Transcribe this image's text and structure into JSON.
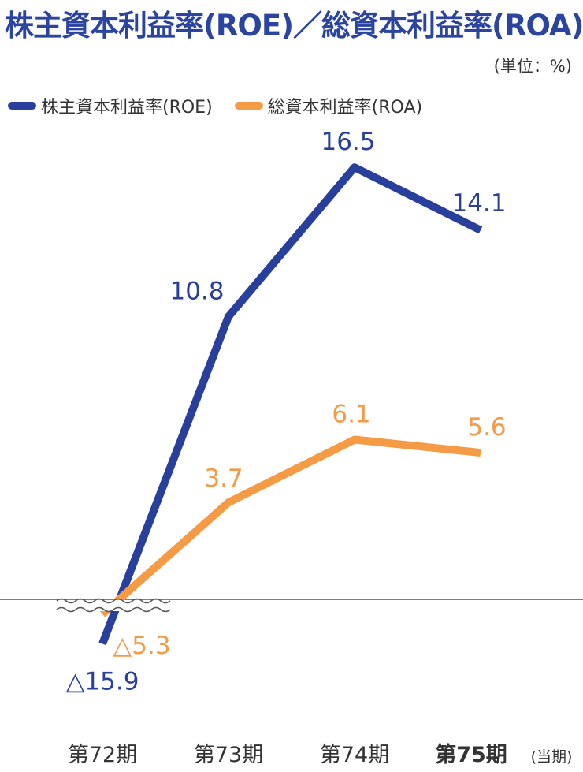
{
  "title": "株主資本利益率(ROE)／総資本利益率(ROA)",
  "unit_label": "(単位：%)",
  "colors": {
    "roe": "#283f9c",
    "roa": "#f59a45",
    "title": "#2a44a0"
  },
  "chart_data": {
    "type": "line",
    "categories": [
      "第72期",
      "第73期",
      "第74期",
      "第75期"
    ],
    "category_suffix_last": "(当期)",
    "bold_category_index": 3,
    "broken_axis": true,
    "series": [
      {
        "key": "roe",
        "name": "株主資本利益率(ROE)",
        "values": [
          -15.9,
          10.8,
          16.5,
          14.1
        ],
        "labels": [
          "△15.9",
          "10.8",
          "16.5",
          "14.1"
        ]
      },
      {
        "key": "roa",
        "name": "総資本利益率(ROA)",
        "values": [
          -5.3,
          3.7,
          6.1,
          5.6
        ],
        "labels": [
          "△5.3",
          "3.7",
          "6.1",
          "5.6"
        ]
      }
    ],
    "grid": false,
    "legend_position": "top-left"
  }
}
